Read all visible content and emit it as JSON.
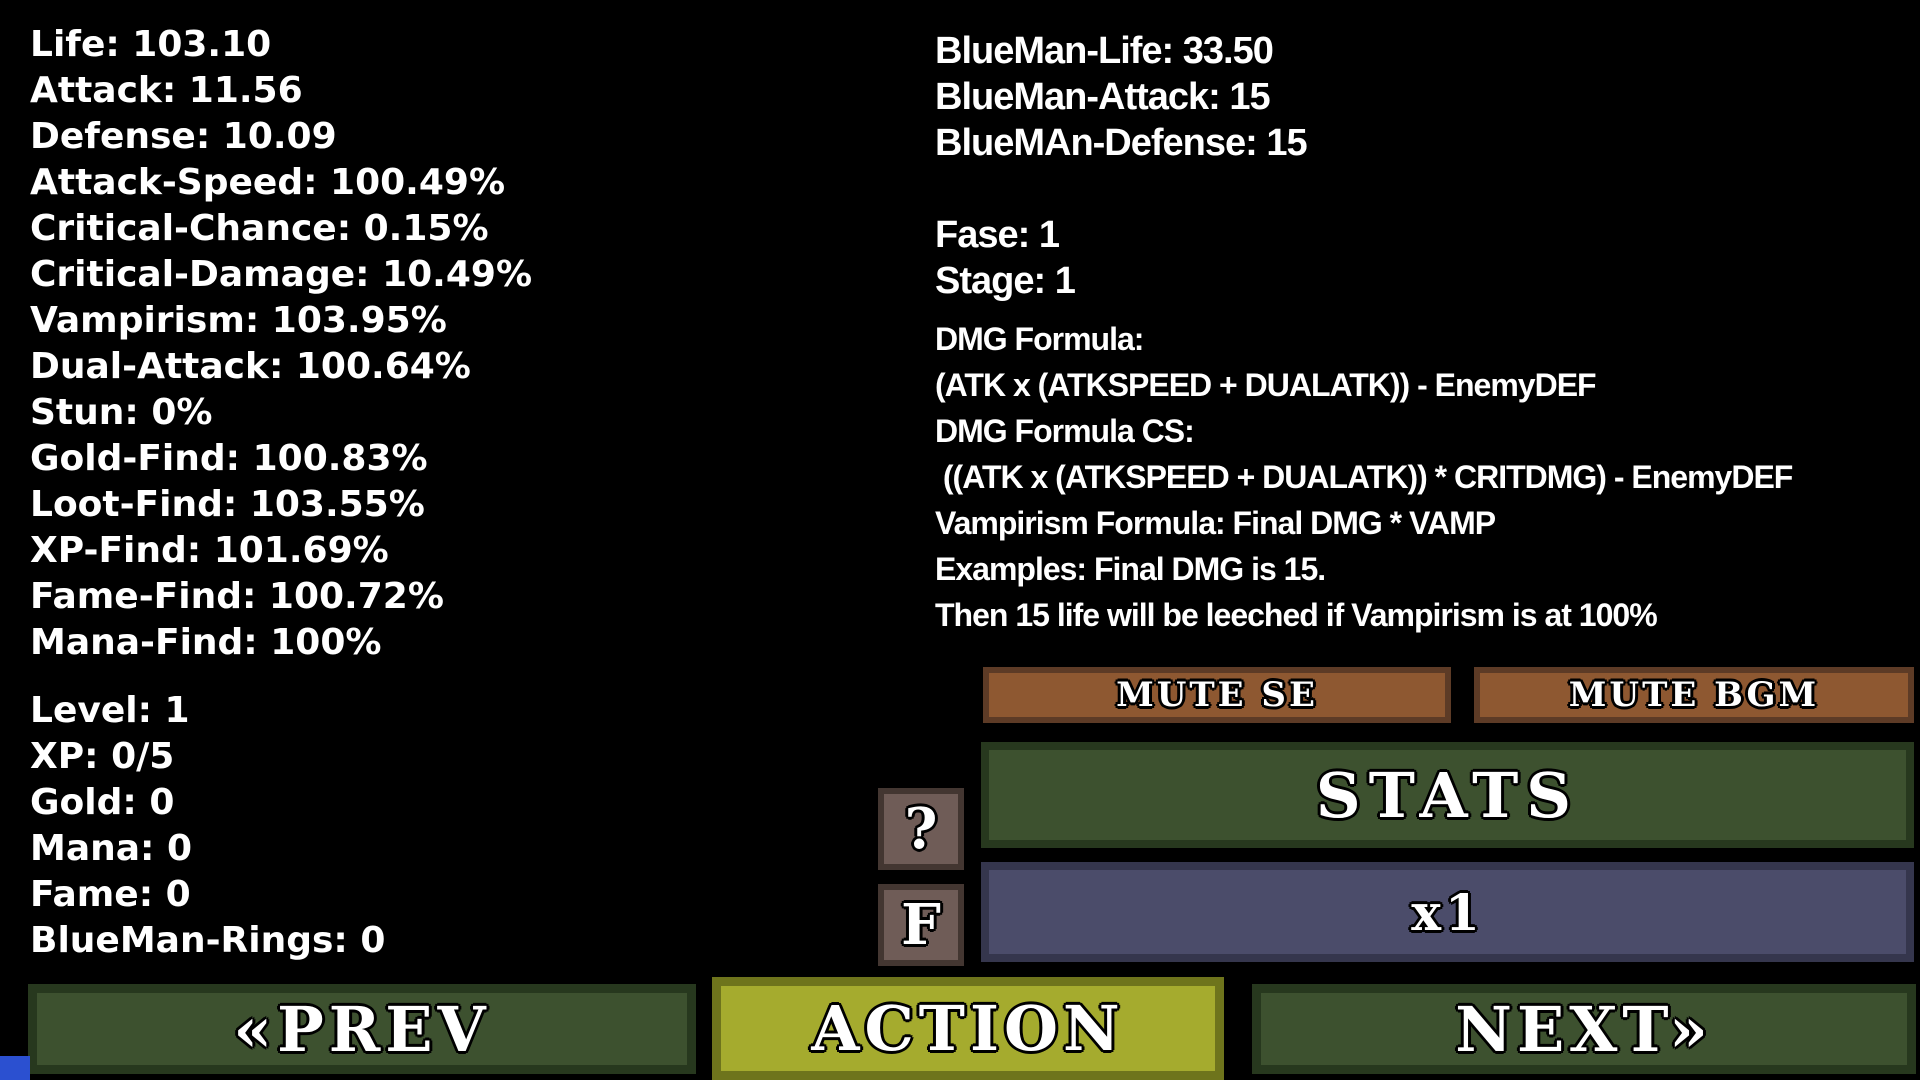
{
  "player_stats": {
    "lines": [
      "Life: 103.10",
      "Attack: 11.56",
      "Defense: 10.09",
      "Attack-Speed: 100.49%",
      "Critical-Chance: 0.15%",
      "Critical-Damage: 10.49%",
      "Vampirism: 103.95%",
      "Dual-Attack: 100.64%",
      "Stun: 0%",
      "Gold-Find: 100.83%",
      "Loot-Find: 103.55%",
      "XP-Find: 101.69%",
      "Fame-Find: 100.72%",
      "Mana-Find: 100%"
    ]
  },
  "progress_stats": {
    "lines": [
      "Level: 1",
      "XP: 0/5",
      "Gold: 0",
      "Mana: 0",
      "Fame: 0",
      "BlueMan-Rings: 0"
    ]
  },
  "enemy_stats": {
    "lines": [
      "BlueMan-Life: 33.50",
      "BlueMan-Attack: 15",
      "BlueMAn-Defense: 15"
    ]
  },
  "stage_info": {
    "lines": [
      "Fase: 1",
      "Stage: 1"
    ]
  },
  "formulas": {
    "lines": [
      "DMG Formula:",
      "(ATK x (ATKSPEED + DUALATK)) - EnemyDEF",
      "DMG Formula CS:",
      " ((ATK x (ATKSPEED + DUALATK)) * CRITDMG) - EnemyDEF",
      "Vampirism Formula: Final DMG * VAMP",
      "Examples: Final DMG is 15.",
      "Then 15 life will be leeched if Vampirism is at 100%"
    ]
  },
  "buttons": {
    "mute_se": "MUTE SE",
    "mute_bgm": "MUTE BGM",
    "stats": "STATS",
    "multiplier": "x1",
    "help": "?",
    "fast": "F",
    "prev": "«PREV",
    "action": "ACTION",
    "next": "NEXT»"
  },
  "colors": {
    "background": "#000000",
    "text": "#ffffff",
    "green_button": "#3d512f",
    "green_border": "#27381e",
    "olive_button": "#a5ab2e",
    "olive_border": "#6e741c",
    "brown_button": "#8e5831",
    "brown_border": "#5d3b26",
    "purple_button": "#4b4c6a",
    "purple_border": "#35364d",
    "gray_button": "#6f5c57",
    "gray_border": "#433631",
    "blue_accent": "#2b50d0"
  }
}
